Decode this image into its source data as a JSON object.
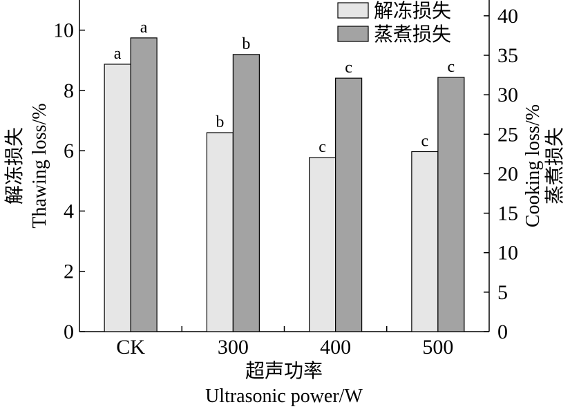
{
  "chart_data": {
    "type": "bar",
    "categories": [
      "CK",
      "300",
      "400",
      "500"
    ],
    "series": [
      {
        "name": "解冻损失",
        "axis": "left",
        "color": "#e6e6e6",
        "values": [
          8.87,
          6.6,
          5.77,
          5.97
        ],
        "labels": [
          "a",
          "b",
          "c",
          "c"
        ]
      },
      {
        "name": "蒸煮损失",
        "axis": "right",
        "color": "#a3a3a3",
        "values": [
          37.2,
          35.1,
          32.1,
          32.2
        ],
        "labels": [
          "a",
          "b",
          "c",
          "c"
        ]
      }
    ],
    "xlabel_cn": "超声功率",
    "xlabel_en": "Ultrasonic power/W",
    "ylabel_left_cn": "解冻损失",
    "ylabel_left_en": "Thawing loss/%",
    "ylabel_right_en": "Cooking loss/%",
    "ylabel_right_cn": "蒸煮损失",
    "ylim_left": [
      0,
      11
    ],
    "yticks_left": [
      0,
      2,
      4,
      6,
      8,
      10
    ],
    "ylim_right": [
      0,
      42
    ],
    "yticks_right": [
      0,
      5,
      10,
      15,
      20,
      25,
      30,
      35,
      40
    ],
    "legend_position": "top-right",
    "grid": false
  }
}
